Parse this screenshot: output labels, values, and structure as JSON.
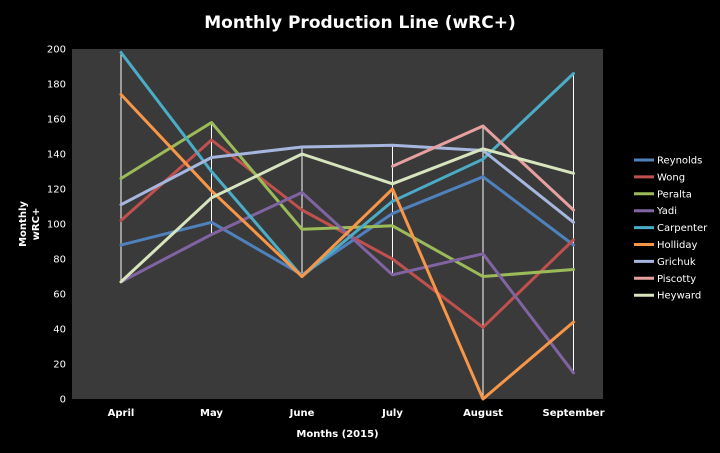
{
  "chart_data": {
    "type": "line",
    "title": "Monthly Production Line (wRC+)",
    "xlabel": "Months (2015)",
    "ylabel_lines": [
      "Monthly",
      "wRC+"
    ],
    "categories": [
      "April",
      "May",
      "June",
      "July",
      "August",
      "September"
    ],
    "ylim": [
      0,
      200
    ],
    "yticks": [
      0,
      20,
      40,
      60,
      80,
      100,
      120,
      140,
      160,
      180,
      200
    ],
    "grid": "vertical drop lines at each month",
    "legend_position": "right",
    "background": "#3a3a3a",
    "series": [
      {
        "name": "Reynolds",
        "color": "#4f81bd",
        "values": [
          88,
          101,
          71,
          106,
          127,
          88
        ]
      },
      {
        "name": "Wong",
        "color": "#c0504d",
        "values": [
          102,
          148,
          108,
          80,
          41,
          91
        ]
      },
      {
        "name": "Peralta",
        "color": "#9bbb59",
        "values": [
          126,
          158,
          97,
          99,
          70,
          74
        ]
      },
      {
        "name": "Yadi",
        "color": "#8064a2",
        "values": [
          67,
          94,
          118,
          71,
          83,
          15
        ]
      },
      {
        "name": "Carpenter",
        "color": "#4bacc6",
        "values": [
          198,
          130,
          70,
          113,
          137,
          186
        ]
      },
      {
        "name": "Holliday",
        "color": "#f79646",
        "values": [
          174,
          119,
          70,
          120,
          0,
          44
        ]
      },
      {
        "name": "Grichuk",
        "color": "#a6b6de",
        "values": [
          111,
          138,
          144,
          145,
          142,
          101
        ]
      },
      {
        "name": "Piscotty",
        "color": "#e6a0a0",
        "values": [
          null,
          null,
          null,
          133,
          156,
          108
        ]
      },
      {
        "name": "Heyward",
        "color": "#d7e4bd",
        "values": [
          67,
          115,
          140,
          123,
          143,
          129
        ]
      }
    ]
  }
}
